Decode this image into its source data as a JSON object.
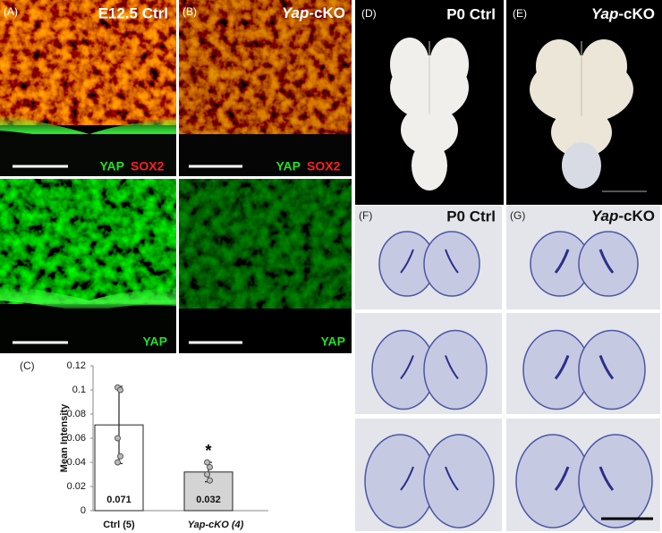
{
  "panels": [
    {
      "label": "(A)",
      "title": "E12.5  Ctrl",
      "stain_1": "YAP",
      "stain_2": "SOX2"
    },
    {
      "label": "(B)",
      "title_italic": "Yap",
      "title_rest": "-cKO",
      "stain_1": "YAP",
      "stain_2": "SOX2"
    },
    {
      "stain_1": "YAP"
    },
    {
      "stain_1": "YAP"
    },
    {
      "label": "(D)",
      "title": "P0 Ctrl"
    },
    {
      "label": "(E)",
      "title_italic": "Yap",
      "title_rest": "-cKO"
    },
    {
      "label": "(F)",
      "title": "P0 Ctrl"
    },
    {
      "label": "(G)",
      "title_italic": "Yap",
      "title_rest": "-cKO"
    }
  ],
  "chart_data": {
    "type": "bar",
    "panel_label": "(C)",
    "y_label": "Mean Intensity",
    "categories": [
      "Ctrl (5)",
      "Yap-cKO (4)"
    ],
    "values": [
      0.071,
      0.032
    ],
    "errors": [
      0.032,
      0.008
    ],
    "colors": [
      "#ffffff",
      "#d4d4d4"
    ],
    "points": [
      [
        0.102,
        0.1,
        0.06,
        0.045,
        0.04
      ],
      [
        0.04,
        0.036,
        0.03,
        0.025
      ]
    ],
    "annotation": "*",
    "ylim": [
      0,
      0.12
    ],
    "yticks": [
      0,
      0.02,
      0.04,
      0.06,
      0.08,
      0.1,
      0.12
    ]
  }
}
